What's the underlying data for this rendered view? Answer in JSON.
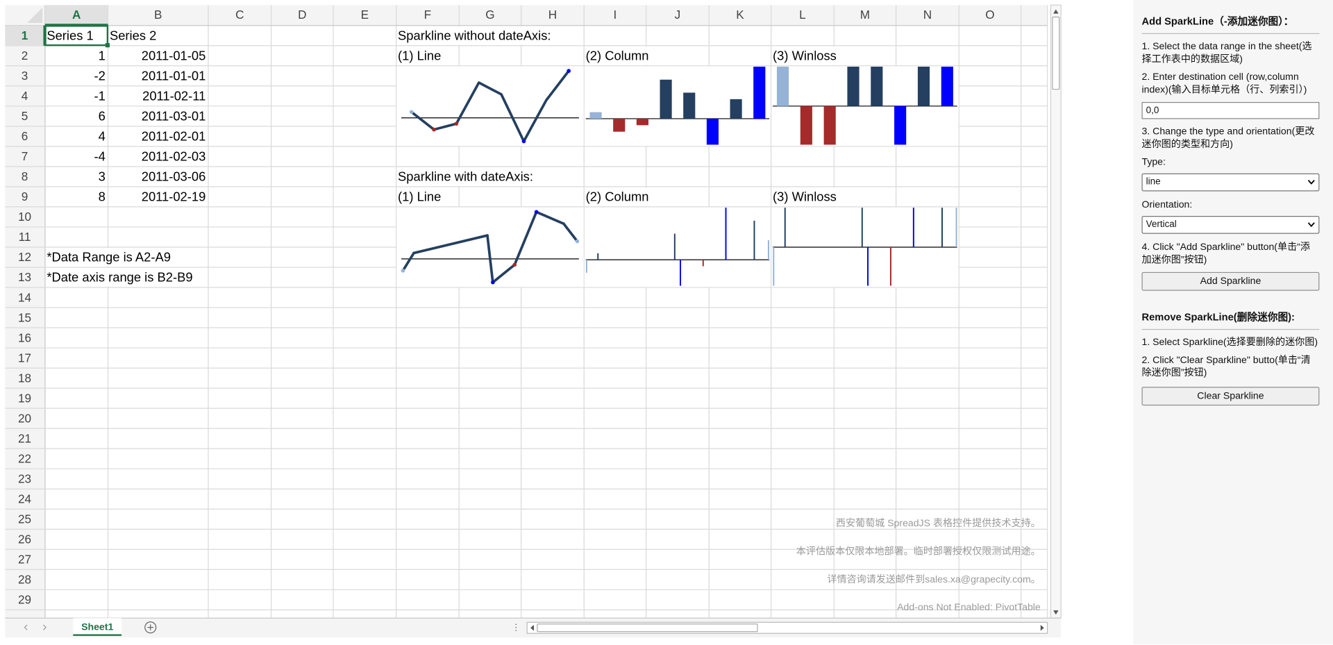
{
  "sheet": {
    "columns": [
      "A",
      "B",
      "C",
      "D",
      "E",
      "F",
      "G",
      "H",
      "I",
      "J",
      "K",
      "L",
      "M",
      "N",
      "O"
    ],
    "rows": [
      1,
      2,
      3,
      4,
      5,
      6,
      7,
      8,
      9,
      10,
      11,
      12,
      13,
      14,
      15,
      16,
      17,
      18,
      19,
      20,
      21,
      22,
      23,
      24,
      25,
      26,
      27,
      28,
      29
    ],
    "series": [
      {
        "header": "Series 1",
        "values": [
          1,
          -2,
          -1,
          6,
          4,
          -4,
          3,
          8
        ]
      },
      {
        "header": "Series 2",
        "values": [
          "2011-01-05",
          "2011-01-01",
          "2011-02-11",
          "2011-03-01",
          "2011-02-01",
          "2011-02-03",
          "2011-03-06",
          "2011-02-19"
        ]
      }
    ],
    "notes": [
      "*Data Range is A2-A9",
      "*Date axis range is B2-B9"
    ],
    "sparkline_groups": [
      {
        "title": "Sparkline without dateAxis:",
        "date_axis": false,
        "labels": [
          "(1) Line",
          "(2) Column",
          "(3) Winloss"
        ]
      },
      {
        "title": "Sparkline with dateAxis:",
        "date_axis": true,
        "labels": [
          "(1) Line",
          "(2) Column",
          "(3) Winloss"
        ]
      }
    ],
    "tab": "Sheet1"
  },
  "watermark": [
    "西安葡萄城 SpreadJS 表格控件提供技术支持。",
    "本评估版本仅限本地部署。临时部署授权仅限测试用途。",
    "详情咨询请发送邮件到sales.xa@grapecity.com。",
    "Add-ons Not Enabled: PivotTable"
  ],
  "panel": {
    "add_title": "Add SparkLine（-添加迷你图）：",
    "add_steps": [
      "1. Select the data range in the sheet(选择工作表中的数据区域)",
      "2. Enter destination cell (row,column index)(输入目标单元格（行、列索引）)"
    ],
    "destination": "0,0",
    "step3": "3. Change the type and orientation(更改迷你图的类型和方向)",
    "type_label": "Type:",
    "type": "line",
    "orientation_label": "Orientation:",
    "orientation": "Vertical",
    "step4": "4. Click \"Add Sparkline\" button(单击“添加迷你图”按钮)",
    "add_button": "Add Sparkline",
    "remove_title": "Remove SparkLine(删除迷你图):",
    "remove_steps": [
      "1. Select Sparkline(选择要删除的迷你图)",
      "2. Click \"Clear Sparkline\" butto(单击“清除迷你图”按钮)"
    ],
    "clear_button": "Clear Sparkline"
  }
}
